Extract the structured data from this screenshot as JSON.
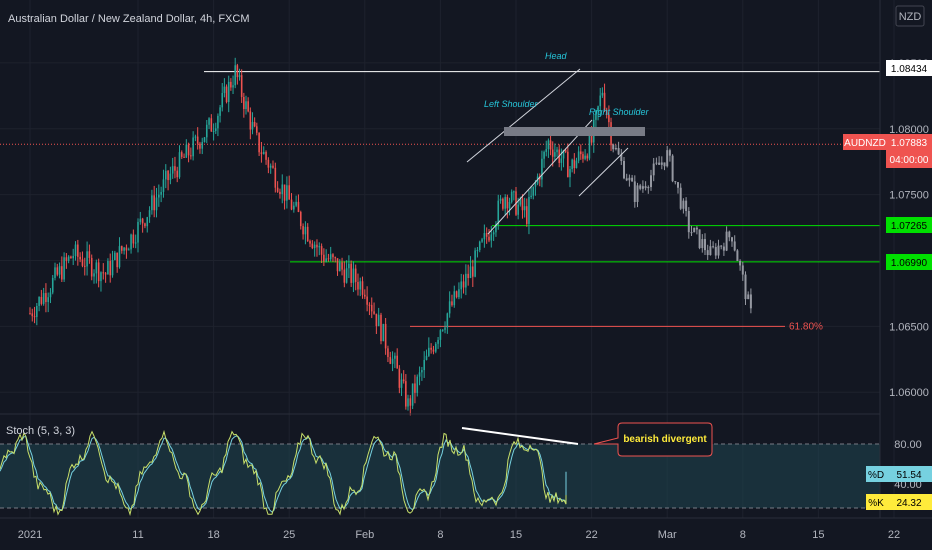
{
  "header": {
    "symbol_title": "Australian Dollar / New Zealand Dollar, 4h, FXCM",
    "currency": "NZD"
  },
  "colors": {
    "background": "#131722",
    "up": "#26a69a",
    "down": "#ef5350",
    "projection": "#9598a1",
    "level_green": "#00e000",
    "fib_red": "#ef5350",
    "annotation": "#26c6da",
    "stoch_k": "#c8e06a",
    "stoch_d": "#76d1e0"
  },
  "annotations": {
    "head": "Head",
    "left_shoulder": "Left Shoulder",
    "right_shoulder": "Right Shoulder",
    "fib_label": "61.80%",
    "callout": "bearish divergent"
  },
  "price_tags": {
    "high": "1.08434",
    "symbol": "AUDNZD",
    "last": "1.07883",
    "countdown": "04:00:00",
    "level1": "1.07265",
    "level2": "1.06990"
  },
  "stoch": {
    "label": "Stoch (5, 3, 3)",
    "d_label": "%D",
    "d_value": "51.54",
    "k_label": "%K",
    "k_value": "24.32",
    "ticks": [
      "80.00",
      "40.00"
    ]
  },
  "chart_data": [
    {
      "type": "candlestick",
      "title": "Australian Dollar / New Zealand Dollar, 4h, FXCM",
      "x_ticks": [
        "2021",
        "11",
        "18",
        "25",
        "Feb",
        "8",
        "15",
        "22",
        "Mar",
        "8",
        "15",
        "22"
      ],
      "y_ticks": [
        "1.08500",
        "1.08000",
        "1.07500",
        "1.07000",
        "1.06500",
        "1.06000"
      ],
      "ylim": [
        1.0585,
        1.0875
      ],
      "waypoints": [
        {
          "x": "2021-01-01",
          "y": 1.066
        },
        {
          "x": "2021-01-05",
          "y": 1.0705
        },
        {
          "x": "2021-01-08",
          "y": 1.069
        },
        {
          "x": "2021-01-11",
          "y": 1.0725
        },
        {
          "x": "2021-01-14",
          "y": 1.0765
        },
        {
          "x": "2021-01-18",
          "y": 1.0805
        },
        {
          "x": "2021-01-20",
          "y": 1.0843
        },
        {
          "x": "2021-01-22",
          "y": 1.079
        },
        {
          "x": "2021-01-25",
          "y": 1.0745
        },
        {
          "x": "2021-01-28",
          "y": 1.0705
        },
        {
          "x": "2021-02-01",
          "y": 1.068
        },
        {
          "x": "2021-02-04",
          "y": 1.0615
        },
        {
          "x": "2021-02-05",
          "y": 1.059
        },
        {
          "x": "2021-02-08",
          "y": 1.065
        },
        {
          "x": "2021-02-11",
          "y": 1.0695
        },
        {
          "x": "2021-02-14",
          "y": 1.075
        },
        {
          "x": "2021-02-16",
          "y": 1.0735
        },
        {
          "x": "2021-02-18",
          "y": 1.079
        },
        {
          "x": "2021-02-20",
          "y": 1.077
        },
        {
          "x": "2021-02-22",
          "y": 1.079
        },
        {
          "x": "2021-02-23",
          "y": 1.083
        },
        {
          "x": "2021-02-24",
          "y": 1.0788
        }
      ],
      "projection": [
        {
          "x": "2021-02-24",
          "y": 1.0788
        },
        {
          "x": "2021-02-26",
          "y": 1.075
        },
        {
          "x": "2021-02-28",
          "y": 1.077
        },
        {
          "x": "2021-03-01",
          "y": 1.078
        },
        {
          "x": "2021-03-03",
          "y": 1.0725
        },
        {
          "x": "2021-03-05",
          "y": 1.0705
        },
        {
          "x": "2021-03-07",
          "y": 1.072
        },
        {
          "x": "2021-03-09",
          "y": 1.065
        }
      ],
      "levels": [
        {
          "y": 1.08434,
          "label": "1.08434",
          "style": "high"
        },
        {
          "y": 1.07883,
          "label": "1.07883",
          "style": "last"
        },
        {
          "y": 1.07265,
          "label": "1.07265",
          "style": "green"
        },
        {
          "y": 1.0699,
          "label": "1.06990",
          "style": "green"
        },
        {
          "y": 1.065,
          "label": "61.80%",
          "style": "fib"
        }
      ]
    },
    {
      "type": "line",
      "title": "Stoch (5, 3, 3)",
      "ylim": [
        0,
        100
      ],
      "y_ticks": [
        "80.00",
        "40.00"
      ],
      "series": [
        {
          "name": "%K",
          "last": 24.32
        },
        {
          "name": "%D",
          "last": 51.54
        }
      ]
    }
  ]
}
